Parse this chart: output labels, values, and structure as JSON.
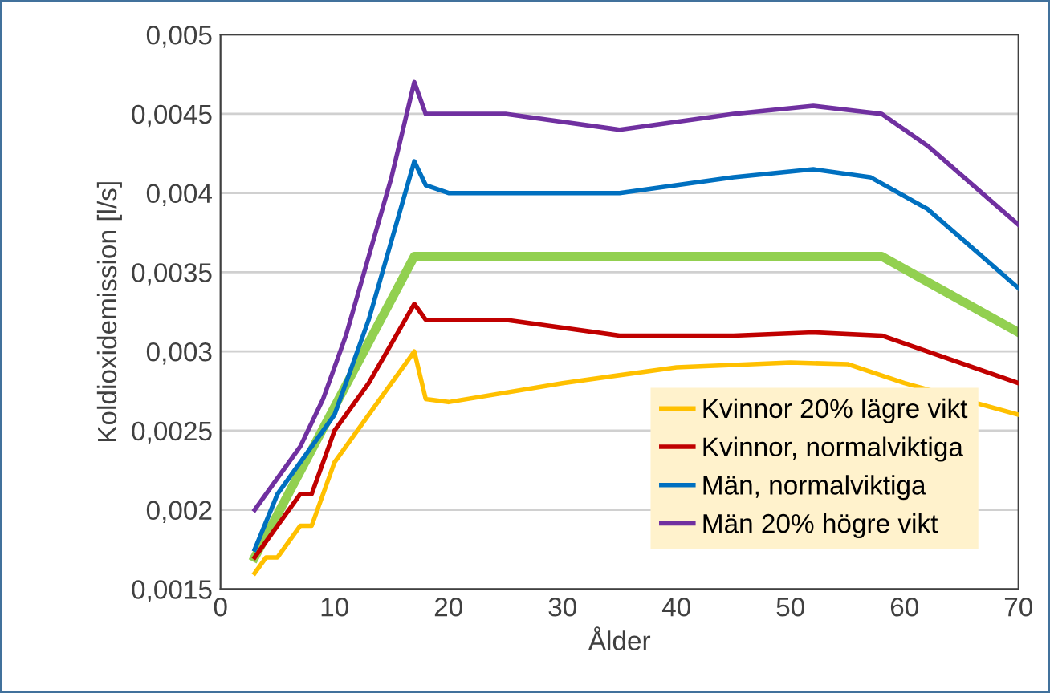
{
  "chart_data": {
    "type": "line",
    "xlabel": "Ålder",
    "ylabel": "Koldioxidemission [l/s]",
    "xlim": [
      0,
      70
    ],
    "xticks": [
      0,
      10,
      20,
      30,
      40,
      50,
      60,
      70
    ],
    "ylim": [
      0.0015,
      0.005
    ],
    "yticks": [
      {
        "value": 0.0015,
        "label": "0,0015"
      },
      {
        "value": 0.002,
        "label": "0,002"
      },
      {
        "value": 0.0025,
        "label": "0,0025"
      },
      {
        "value": 0.003,
        "label": "0,003"
      },
      {
        "value": 0.0035,
        "label": "0,0035"
      },
      {
        "value": 0.004,
        "label": "0,004"
      },
      {
        "value": 0.0045,
        "label": "0,0045"
      },
      {
        "value": 0.005,
        "label": "0,005"
      }
    ],
    "grid": "y",
    "legend": "bottom right",
    "marker": "none",
    "line_style": "solid",
    "series": [
      {
        "name": "Kvinnor 20% lägre vikt",
        "color": "#ffc000",
        "x": [
          3,
          4,
          5,
          7,
          8,
          10,
          13,
          15,
          17,
          18,
          20,
          30,
          40,
          50,
          55,
          60,
          70
        ],
        "values": [
          0.0016,
          0.0017,
          0.0017,
          0.0019,
          0.0019,
          0.0023,
          0.0026,
          0.0028,
          0.003,
          0.0027,
          0.00268,
          0.0028,
          0.0029,
          0.00293,
          0.00292,
          0.0028,
          0.0026
        ]
      },
      {
        "name": "Kvinnor, normalviktiga",
        "color": "#c00000",
        "x": [
          3,
          5,
          7,
          8,
          10,
          13,
          15,
          17,
          18,
          20,
          25,
          35,
          45,
          52,
          58,
          62,
          70
        ],
        "values": [
          0.0017,
          0.0019,
          0.0021,
          0.0021,
          0.0025,
          0.0028,
          0.00305,
          0.0033,
          0.0032,
          0.0032,
          0.0032,
          0.0031,
          0.0031,
          0.00312,
          0.0031,
          0.003,
          0.0028
        ]
      },
      {
        "name": "Män, normalviktiga",
        "color": "#0070c0",
        "x": [
          3,
          5,
          7,
          10,
          13,
          15,
          17,
          18,
          20,
          30,
          35,
          45,
          52,
          57,
          62,
          70
        ],
        "values": [
          0.00175,
          0.0021,
          0.0023,
          0.0026,
          0.0032,
          0.0037,
          0.0042,
          0.00405,
          0.004,
          0.004,
          0.004,
          0.0041,
          0.00415,
          0.0041,
          0.0039,
          0.0034
        ]
      },
      {
        "name": "Män 20% högre vikt",
        "color": "#7030a0",
        "x": [
          3,
          5,
          7,
          9,
          11,
          13,
          15,
          16,
          17,
          18,
          20,
          25,
          35,
          45,
          52,
          58,
          62,
          70
        ],
        "values": [
          0.002,
          0.0022,
          0.0024,
          0.0027,
          0.0031,
          0.0036,
          0.0041,
          0.0044,
          0.0047,
          0.0045,
          0.0045,
          0.0045,
          0.0044,
          0.0045,
          0.00455,
          0.0045,
          0.0043,
          0.0038
        ]
      },
      {
        "color": "#92d050",
        "x": [
          3,
          17,
          58,
          70
        ],
        "values": [
          0.0017,
          0.0036,
          0.0036,
          0.00312
        ]
      }
    ]
  }
}
